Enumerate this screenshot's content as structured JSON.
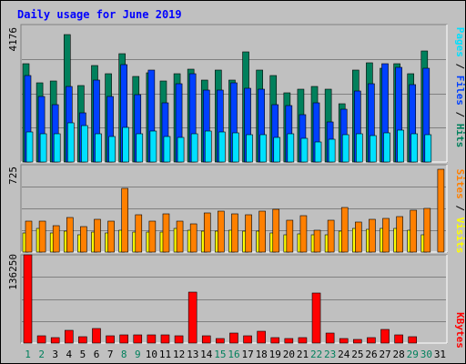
{
  "chart_data": [
    {
      "type": "bar",
      "title": "Daily usage for June 2019",
      "categories": [
        "1",
        "2",
        "3",
        "4",
        "5",
        "6",
        "7",
        "8",
        "9",
        "10",
        "11",
        "12",
        "13",
        "14",
        "15",
        "16",
        "17",
        "18",
        "19",
        "20",
        "21",
        "22",
        "23",
        "24",
        "25",
        "26",
        "27",
        "28",
        "29",
        "30",
        "31"
      ],
      "weekend_days": [
        "1",
        "2",
        "8",
        "9",
        "15",
        "16",
        "22",
        "23",
        "29",
        "30"
      ],
      "ymax": 4176,
      "ymax_label": "4176",
      "legend": [
        "Pages",
        "Files",
        "Hits"
      ],
      "series": [
        {
          "name": "Hits",
          "color": "#00805c",
          "values": [
            3000,
            2400,
            2450,
            3880,
            2320,
            2930,
            2680,
            3300,
            2600,
            2700,
            2450,
            2670,
            2830,
            2500,
            2800,
            2500,
            3340,
            2800,
            2630,
            2100,
            2200,
            2300,
            2200,
            1780,
            2800,
            3010,
            2850,
            3000,
            2670,
            3380,
            0
          ]
        },
        {
          "name": "Files",
          "color": "#0040ff",
          "values": [
            2620,
            2000,
            1740,
            2300,
            1480,
            2500,
            2000,
            2960,
            2060,
            2780,
            1800,
            2380,
            2680,
            2180,
            2180,
            2400,
            2240,
            2200,
            1750,
            1720,
            1450,
            1800,
            1210,
            1600,
            2160,
            2370,
            3000,
            2870,
            2360,
            2860,
            0
          ]
        },
        {
          "name": "Pages",
          "color": "#00e0ff",
          "values": [
            920,
            850,
            850,
            1180,
            1100,
            850,
            780,
            1040,
            860,
            950,
            780,
            760,
            860,
            940,
            900,
            890,
            830,
            820,
            740,
            860,
            720,
            610,
            680,
            830,
            860,
            800,
            880,
            960,
            850,
            830,
            0
          ]
        }
      ]
    },
    {
      "type": "bar",
      "ymax": 725,
      "ymax_label": "725",
      "legend": [
        "Sites",
        "Visits"
      ],
      "series": [
        {
          "name": "Visits",
          "color": "#ffff00",
          "values": [
            160,
            195,
            160,
            175,
            140,
            165,
            160,
            180,
            165,
            165,
            165,
            195,
            185,
            170,
            170,
            180,
            170,
            175,
            160,
            145,
            150,
            145,
            145,
            175,
            195,
            190,
            195,
            195,
            180,
            145,
            0
          ]
        },
        {
          "name": "Sites",
          "color": "#ff8000",
          "values": [
            255,
            260,
            220,
            285,
            215,
            270,
            260,
            525,
            310,
            260,
            315,
            260,
            235,
            325,
            340,
            320,
            310,
            340,
            355,
            265,
            305,
            185,
            265,
            370,
            250,
            270,
            280,
            295,
            350,
            360,
            685
          ]
        }
      ]
    },
    {
      "type": "bar",
      "ymax": 136250,
      "ymax_label": "136250",
      "legend": [
        "KBytes"
      ],
      "series": [
        {
          "name": "KBytes",
          "color": "#ff0000",
          "values": [
            136250,
            11000,
            8000,
            19000,
            10500,
            23000,
            11000,
            12000,
            13000,
            12000,
            12500,
            11500,
            78000,
            11000,
            6500,
            16000,
            11500,
            18000,
            8000,
            7000,
            9000,
            77000,
            16000,
            7000,
            6000,
            9000,
            21000,
            12000,
            10500,
            0,
            0
          ]
        }
      ]
    }
  ]
}
